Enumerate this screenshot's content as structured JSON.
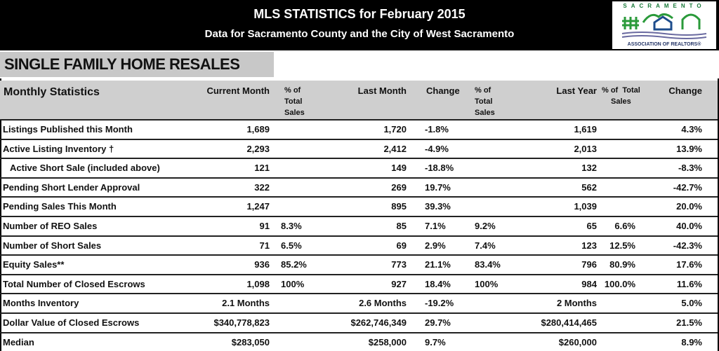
{
  "header": {
    "title": "MLS STATISTICS for February 2015",
    "subtitle": "Data for Sacramento County and the City of West Sacramento",
    "logo_top": "SACRAMENTO",
    "logo_bottom": "ASSOCIATION OF REALTORS®"
  },
  "section_title": "SINGLE FAMILY HOME RESALES",
  "columns": {
    "label": "Monthly Statistics",
    "current_month": "Current Month",
    "pct_total_1": "% of\nTotal\nSales",
    "last_month": "Last Month",
    "change_1": "Change",
    "pct_total_2": "% of\nTotal\nSales",
    "last_year": "Last Year",
    "pct_total_3": "% of  Total\nSales",
    "change_2": "Change"
  },
  "rows": [
    {
      "label": "Listings Published this Month",
      "current": "1,689",
      "cur_pct": "",
      "last_month": "1,720",
      "change_lm": "-1.8%",
      "lm_pct": "",
      "last_year": "1,619",
      "ly_pct": "",
      "change_ly": "4.3%"
    },
    {
      "label": "Active Listing Inventory †",
      "current": "2,293",
      "cur_pct": "",
      "last_month": "2,412",
      "change_lm": "-4.9%",
      "lm_pct": "",
      "last_year": "2,013",
      "ly_pct": "",
      "change_ly": "13.9%"
    },
    {
      "label": "Active Short Sale (included above)",
      "indent": true,
      "current": "121",
      "cur_pct": "",
      "last_month": "149",
      "change_lm": "-18.8%",
      "lm_pct": "",
      "last_year": "132",
      "ly_pct": "",
      "change_ly": "-8.3%"
    },
    {
      "label": "Pending Short Lender Approval",
      "current": "322",
      "cur_pct": "",
      "last_month": "269",
      "change_lm": "19.7%",
      "lm_pct": "",
      "last_year": "562",
      "ly_pct": "",
      "change_ly": "-42.7%"
    },
    {
      "label": "Pending Sales This Month",
      "current": "1,247",
      "cur_pct": "",
      "last_month": "895",
      "change_lm": "39.3%",
      "lm_pct": "",
      "last_year": "1,039",
      "ly_pct": "",
      "change_ly": "20.0%"
    },
    {
      "label": "Number of REO Sales",
      "current": "91",
      "cur_pct": "8.3%",
      "last_month": "85",
      "change_lm": "7.1%",
      "lm_pct": "9.2%",
      "last_year": "65",
      "ly_pct": "6.6%",
      "change_ly": "40.0%"
    },
    {
      "label": "Number of Short Sales",
      "current": "71",
      "cur_pct": "6.5%",
      "last_month": "69",
      "change_lm": "2.9%",
      "lm_pct": "7.4%",
      "last_year": "123",
      "ly_pct": "12.5%",
      "change_ly": "-42.3%"
    },
    {
      "label": "Equity Sales**",
      "current": "936",
      "cur_pct": "85.2%",
      "last_month": "773",
      "change_lm": "21.1%",
      "lm_pct": "83.4%",
      "last_year": "796",
      "ly_pct": "80.9%",
      "change_ly": "17.6%"
    },
    {
      "label": "Total Number of Closed Escrows",
      "current": "1,098",
      "cur_pct": "100%",
      "last_month": "927",
      "change_lm": "18.4%",
      "lm_pct": "100%",
      "last_year": "984",
      "ly_pct": "100.0%",
      "change_ly": "11.6%"
    },
    {
      "label": "Months Inventory",
      "current": "2.1 Months",
      "cur_pct": "",
      "last_month": "2.6 Months",
      "change_lm": "-19.2%",
      "lm_pct": "",
      "last_year": "2 Months",
      "ly_pct": "",
      "change_ly": "5.0%"
    },
    {
      "label": "Dollar Value of Closed Escrows",
      "current": "$340,778,823",
      "cur_pct": "",
      "last_month": "$262,746,349",
      "change_lm": "29.7%",
      "lm_pct": "",
      "last_year": "$280,414,465",
      "ly_pct": "",
      "change_ly": "21.5%"
    },
    {
      "label": "Median",
      "current": "$283,050",
      "cur_pct": "",
      "last_month": "$258,000",
      "change_lm": "9.7%",
      "lm_pct": "",
      "last_year": "$260,000",
      "ly_pct": "",
      "change_ly": "8.9%"
    }
  ]
}
